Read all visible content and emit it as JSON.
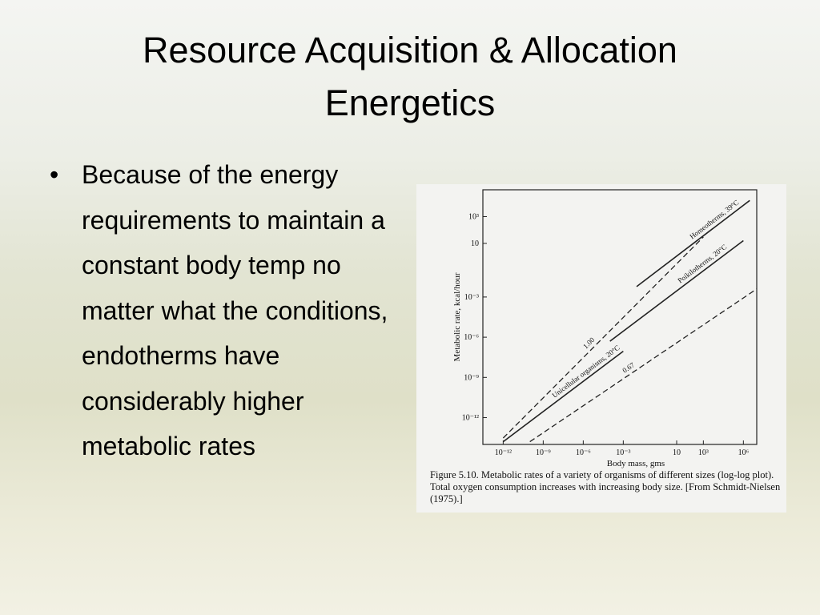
{
  "slide": {
    "title": "Resource Acquisition & Allocation Energetics",
    "bullets": [
      "Because of the energy requirements to maintain a constant body temp no matter what the conditions, endotherms have considerably higher metabolic rates"
    ]
  },
  "figure": {
    "chart_data": {
      "type": "line",
      "x_label": "Body mass, gms",
      "y_label": "Metabolic rate, kcal/hour",
      "caption": "Figure 5.10. Metabolic rates of a variety of organisms of different sizes (log-log plot). Total oxygen consumption increases with increasing body size. [From Schmidt-Nielsen (1975).]",
      "log_scale": true,
      "xlim": [
        3e-14,
        10000000.0
      ],
      "ylim": [
        1e-14,
        100000.0
      ],
      "xticks": [
        {
          "value": 1e-12,
          "label": "10⁻¹²"
        },
        {
          "value": 1e-09,
          "label": "10⁻⁹"
        },
        {
          "value": 1e-06,
          "label": "10⁻⁶"
        },
        {
          "value": 0.001,
          "label": "10⁻³"
        },
        10,
        {
          "value": 1000,
          "label": "10³"
        },
        {
          "value": 1000000,
          "label": "10⁶"
        }
      ],
      "yticks": [
        {
          "value": 1000,
          "label": "10³"
        },
        10,
        {
          "value": 0.001,
          "label": "10⁻³"
        },
        {
          "value": 1e-06,
          "label": "10⁻⁶"
        },
        {
          "value": 1e-09,
          "label": "10⁻⁹"
        },
        {
          "value": 1e-12,
          "label": "10⁻¹²"
        }
      ],
      "series": [
        {
          "name": "Homeotherms, 39°C",
          "color": "#222222",
          "dash": false,
          "x": [
            0.01,
            3000000
          ],
          "values": [
            0.006,
            16000
          ]
        },
        {
          "name": "Poikilotherms, 20°C",
          "color": "#222222",
          "dash": false,
          "x": [
            0.0001,
            1000000
          ],
          "values": [
            5e-07,
            16
          ]
        },
        {
          "name": "Unicellular organisms, 20°C",
          "color": "#222222",
          "dash": false,
          "x": [
            1e-12,
            0.001
          ],
          "values": [
            1.6e-14,
            9e-08
          ]
        },
        {
          "name": "1.00",
          "color": "#222222",
          "dash": true,
          "x": [
            1e-12,
            1000
          ],
          "values": [
            3e-14,
            30
          ]
        },
        {
          "name": "0.67",
          "color": "#222222",
          "dash": true,
          "x": [
            1e-10,
            10000000
          ],
          "values": [
            1.6e-14,
            0.004
          ]
        }
      ]
    }
  }
}
